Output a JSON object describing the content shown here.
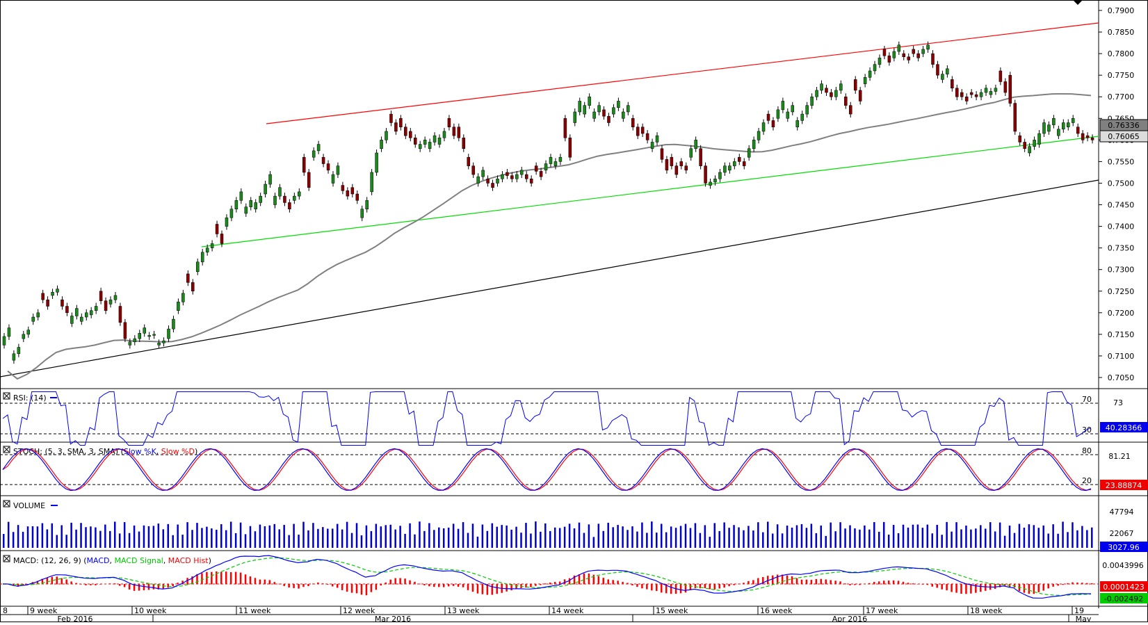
{
  "chart_data": {
    "type": "candlestick",
    "price_panel": {
      "y_ticks": [
        "0.7900",
        "0.7850",
        "0.7800",
        "0.7750",
        "0.7700",
        "0.7650",
        "0.7600",
        "0.7550",
        "0.7500",
        "0.7450",
        "0.7400",
        "0.7350",
        "0.7300",
        "0.7250",
        "0.7200",
        "0.7150",
        "0.7100",
        "0.7050"
      ],
      "ylim": [
        0.7025,
        0.7915
      ],
      "current_price": "0.76065",
      "sma_value": "0.76336",
      "ohlc_approx": [
        [
          0.7165,
          0.7125
        ],
        [
          0.712,
          0.709
        ],
        [
          0.716,
          0.714
        ],
        [
          0.72,
          0.718
        ],
        [
          0.7245,
          0.7215
        ],
        [
          0.7255,
          0.724
        ],
        [
          0.723,
          0.72
        ],
        [
          0.721,
          0.7175
        ],
        [
          0.72,
          0.718
        ],
        [
          0.7215,
          0.7195
        ],
        [
          0.725,
          0.7205
        ],
        [
          0.724,
          0.722
        ],
        [
          0.7215,
          0.714
        ],
        [
          0.714,
          0.7125
        ],
        [
          0.7165,
          0.714
        ],
        [
          0.715,
          0.7145
        ],
        [
          0.7135,
          0.7125
        ],
        [
          0.7185,
          0.714
        ],
        [
          0.7245,
          0.7205
        ],
        [
          0.729,
          0.725
        ],
        [
          0.734,
          0.7295
        ],
        [
          0.736,
          0.734
        ],
        [
          0.7405,
          0.736
        ],
        [
          0.744,
          0.74
        ],
        [
          0.748,
          0.744
        ],
        [
          0.746,
          0.743
        ],
        [
          0.747,
          0.744
        ],
        [
          0.752,
          0.7475
        ],
        [
          0.749,
          0.745
        ],
        [
          0.747,
          0.744
        ],
        [
          0.748,
          0.746
        ],
        [
          0.756,
          0.749
        ],
        [
          0.759,
          0.756
        ],
        [
          0.756,
          0.753
        ],
        [
          0.754,
          0.75
        ],
        [
          0.7495,
          0.747
        ],
        [
          0.749,
          0.746
        ],
        [
          0.746,
          0.742
        ],
        [
          0.757,
          0.748
        ],
        [
          0.762,
          0.758
        ],
        [
          0.766,
          0.762
        ],
        [
          0.765,
          0.761
        ],
        [
          0.762,
          0.759
        ],
        [
          0.76,
          0.758
        ],
        [
          0.761,
          0.758
        ],
        [
          0.762,
          0.759
        ],
        [
          0.765,
          0.761
        ],
        [
          0.763,
          0.758
        ],
        [
          0.756,
          0.752
        ],
        [
          0.753,
          0.75
        ],
        [
          0.751,
          0.749
        ],
        [
          0.752,
          0.75
        ],
        [
          0.7525,
          0.751
        ],
        [
          0.753,
          0.751
        ],
        [
          0.752,
          0.75
        ],
        [
          0.754,
          0.7515
        ],
        [
          0.756,
          0.753
        ],
        [
          0.756,
          0.754
        ],
        [
          0.765,
          0.756
        ],
        [
          0.769,
          0.764
        ],
        [
          0.77,
          0.766
        ],
        [
          0.768,
          0.765
        ],
        [
          0.767,
          0.764
        ],
        [
          0.769,
          0.766
        ],
        [
          0.768,
          0.765
        ],
        [
          0.765,
          0.761
        ],
        [
          0.763,
          0.76
        ],
        [
          0.761,
          0.758
        ],
        [
          0.758,
          0.753
        ],
        [
          0.756,
          0.752
        ],
        [
          0.755,
          0.753
        ],
        [
          0.76,
          0.756
        ],
        [
          0.758,
          0.75
        ],
        [
          0.751,
          0.7495
        ],
        [
          0.754,
          0.751
        ],
        [
          0.755,
          0.753
        ],
        [
          0.756,
          0.754
        ],
        [
          0.76,
          0.756
        ],
        [
          0.764,
          0.76
        ],
        [
          0.766,
          0.763
        ],
        [
          0.769,
          0.765
        ],
        [
          0.768,
          0.765
        ],
        [
          0.766,
          0.763
        ],
        [
          0.77,
          0.766
        ],
        [
          0.773,
          0.77
        ],
        [
          0.772,
          0.77
        ],
        [
          0.773,
          0.77
        ],
        [
          0.77,
          0.766
        ],
        [
          0.774,
          0.769
        ],
        [
          0.776,
          0.773
        ],
        [
          0.779,
          0.776
        ],
        [
          0.781,
          0.778
        ],
        [
          0.782,
          0.779
        ],
        [
          0.78,
          0.7785
        ],
        [
          0.781,
          0.779
        ],
        [
          0.782,
          0.78
        ],
        [
          0.78,
          0.775
        ],
        [
          0.7765,
          0.774
        ],
        [
          0.774,
          0.77
        ],
        [
          0.771,
          0.769
        ],
        [
          0.771,
          0.77
        ],
        [
          0.772,
          0.77
        ],
        [
          0.772,
          0.7705
        ],
        [
          0.776,
          0.771
        ],
        [
          0.775,
          0.762
        ],
        [
          0.761,
          0.758
        ],
        [
          0.76,
          0.757
        ],
        [
          0.764,
          0.759
        ],
        [
          0.765,
          0.762
        ],
        [
          0.764,
          0.761
        ],
        [
          0.765,
          0.763
        ],
        [
          0.763,
          0.76
        ],
        [
          0.761,
          0.76
        ]
      ]
    },
    "rsi": {
      "title": "RSI: (14)",
      "levels": [
        "70",
        "30"
      ],
      "right_ticks": [
        "73",
        "30"
      ],
      "value": "40.28366"
    },
    "stochastic": {
      "title_prefix": "STOCH: (5, 3, SMA, 3, SMA) (",
      "k_name": "Slow %K",
      "d_name": "Slow %D",
      "levels": [
        "80",
        "20"
      ],
      "right_ticks": [
        "81.21"
      ],
      "value": "23.88874"
    },
    "volume": {
      "title": "VOLUME",
      "right_ticks": [
        "47794",
        "22067"
      ],
      "value": "3027.96"
    },
    "macd": {
      "title_prefix": "MACD: (12, 26, 9) (",
      "macd_name": "MACD",
      "signal_name": "MACD Signal",
      "hist_name": "MACD Hist",
      "right_ticks": [
        "0.0043996"
      ],
      "value_pos": "0.0001423",
      "value_neg": "-0.002492"
    },
    "x_week_labels": [
      "8",
      "9 week",
      "10 week",
      "11 week",
      "12 week",
      "13 week",
      "14 week",
      "15 week",
      "16 week",
      "17 week",
      "18 week",
      "19"
    ],
    "x_month_labels": [
      "Feb 2016",
      "Mar 2016",
      "Apr 2016",
      "May"
    ],
    "colors": {
      "up": "#1a8a1a",
      "down": "#8b0000",
      "red_trend": "#ff0000",
      "green_trend": "#00dd00",
      "black_trend": "#000000",
      "sma": "#808080",
      "rsi": "#0000ff",
      "stoch_k": "#0000ff",
      "stoch_d": "#ff0000",
      "volume": "#0000cc",
      "macd": "#0000ff",
      "signal": "#00cc00",
      "hist": "#ff0000"
    }
  }
}
